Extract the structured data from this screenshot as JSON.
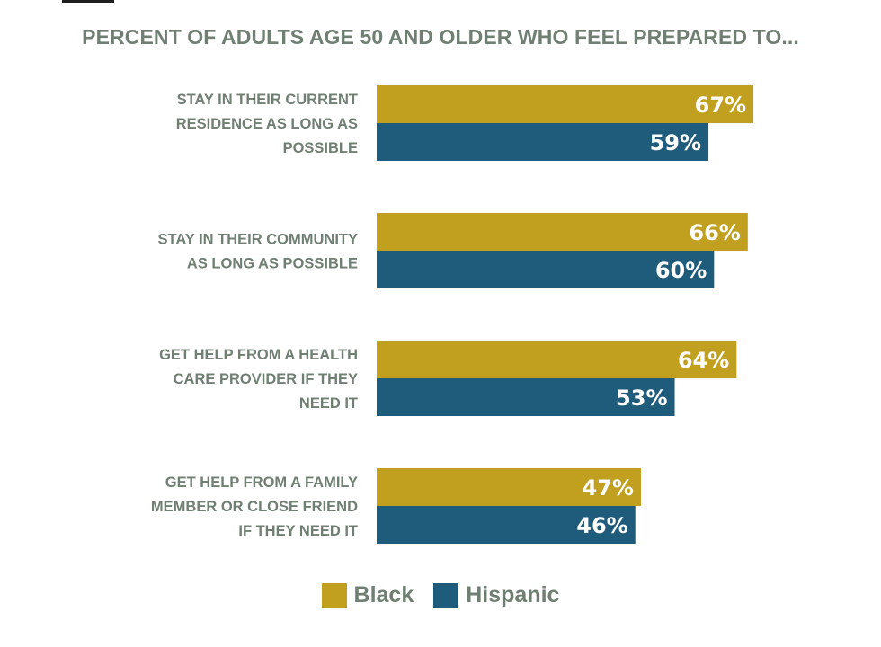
{
  "chart_data": {
    "type": "bar",
    "orientation": "horizontal",
    "title": "PERCENT OF ADULTS AGE 50 AND OLDER WHO FEEL PREPARED TO...",
    "categories": [
      [
        "STAY IN THEIR CURRENT",
        "RESIDENCE AS LONG AS",
        "POSSIBLE"
      ],
      [
        "STAY IN THEIR COMMUNITY",
        "AS LONG AS POSSIBLE"
      ],
      [
        "GET HELP FROM A HEALTH",
        "CARE PROVIDER IF THEY",
        "NEED IT"
      ],
      [
        "GET HELP FROM A FAMILY",
        "MEMBER OR CLOSE FRIEND",
        "IF THEY NEED IT"
      ]
    ],
    "series": [
      {
        "name": "Black",
        "color": "#c19f1f",
        "values": [
          67,
          66,
          64,
          47
        ],
        "labels": [
          "67%",
          "66%",
          "64%",
          "47%"
        ]
      },
      {
        "name": "Hispanic",
        "color": "#1f5b7a",
        "values": [
          59,
          60,
          53,
          46
        ],
        "labels": [
          "59%",
          "60%",
          "53%",
          "46%"
        ]
      }
    ],
    "xlim": [
      0,
      100
    ],
    "grid": false,
    "legend_position": "bottom-center"
  }
}
